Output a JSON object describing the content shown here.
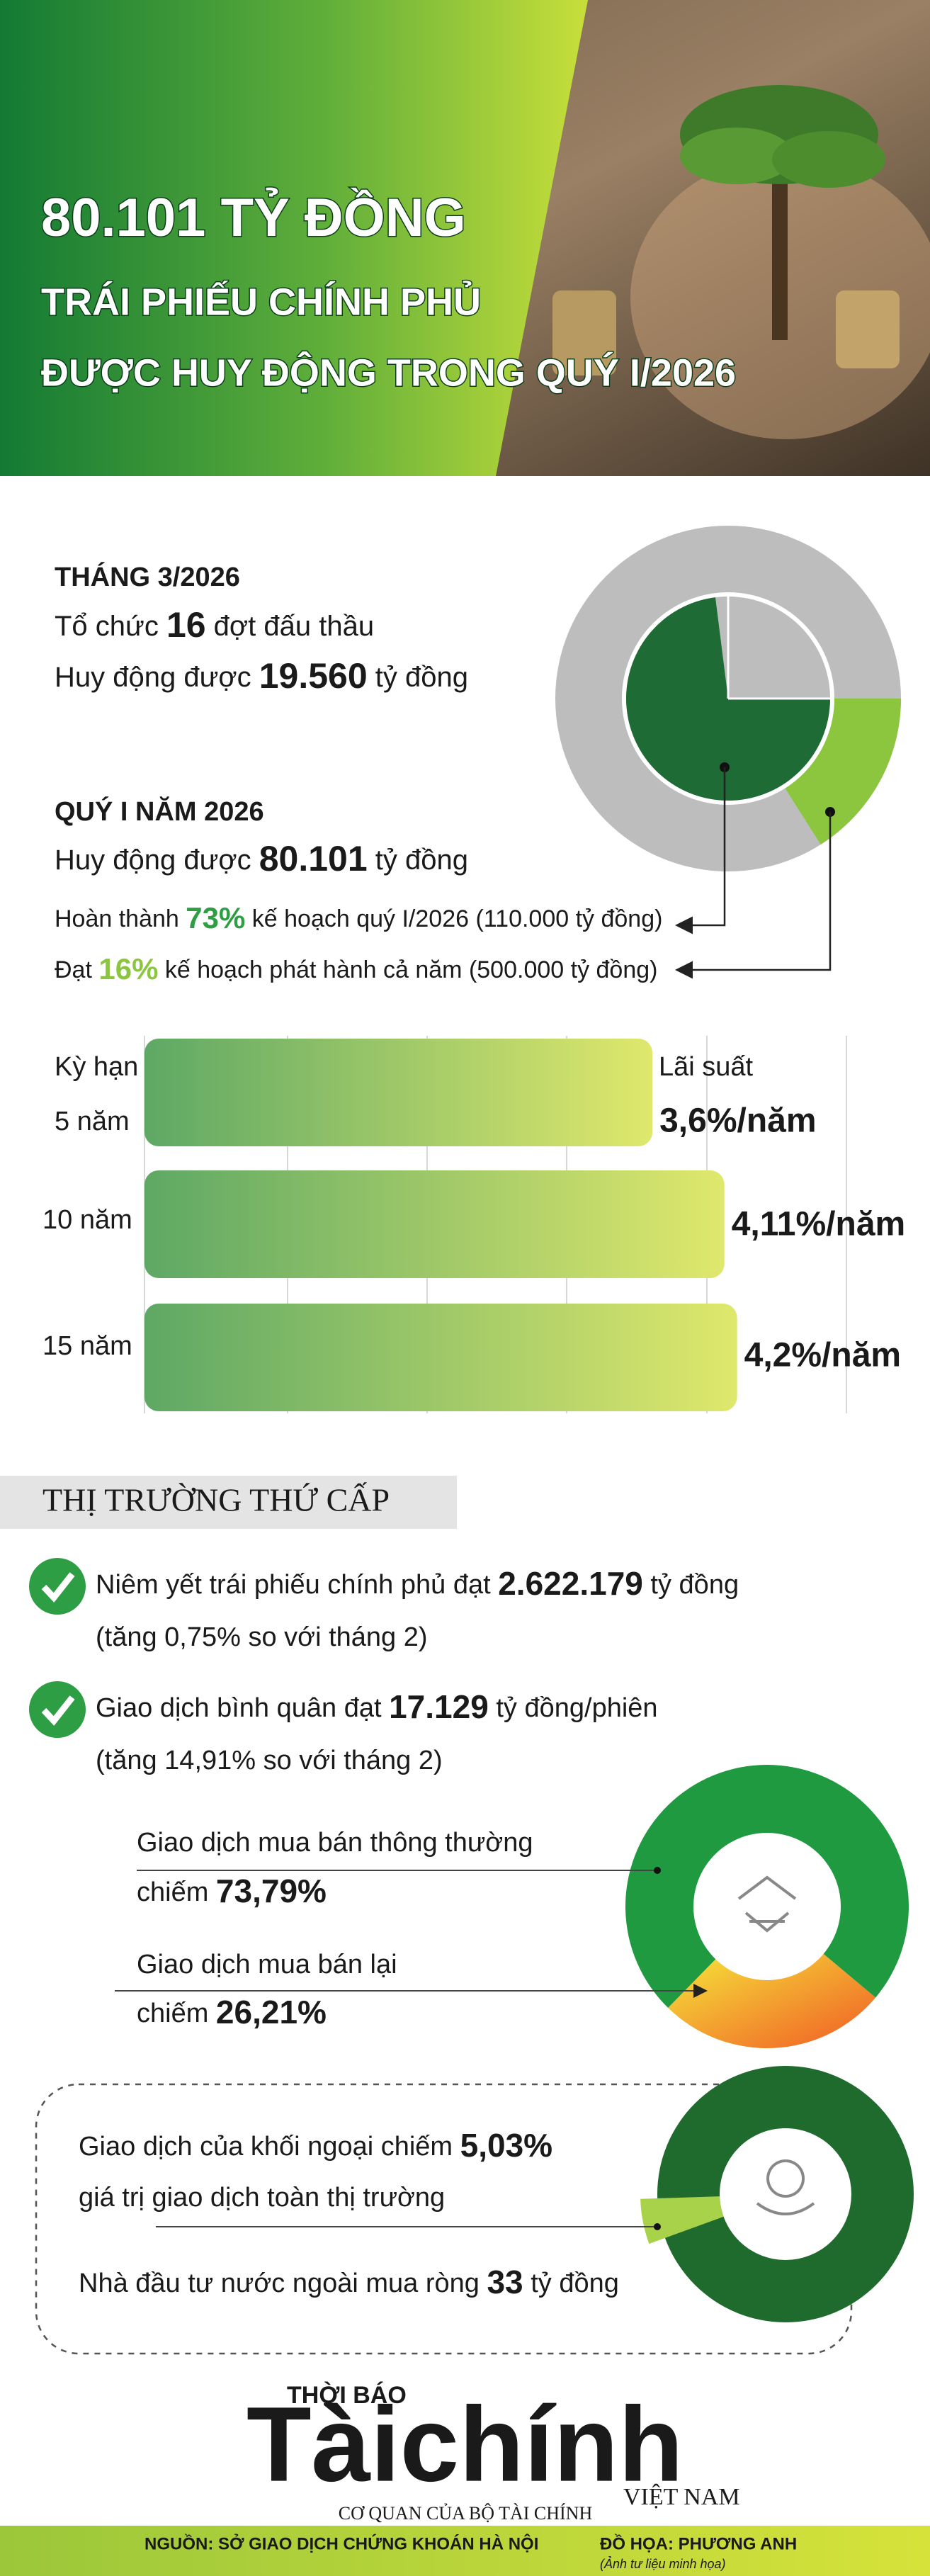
{
  "header": {
    "title_lines": [
      "80.101 TỶ ĐỒNG",
      "TRÁI PHIẾU CHÍNH PHỦ",
      "ĐƯỢC HUY ĐỘNG TRONG QUÝ I/2026"
    ]
  },
  "march": {
    "heading": "THÁNG 3/2026",
    "lines": [
      [
        "Tổ chức ",
        "16",
        " đợt đấu thầu"
      ],
      [
        "Huy động được ",
        "19.560",
        " tỷ đồng"
      ]
    ]
  },
  "quarter": {
    "heading": "QUÝ I NĂM 2026",
    "lines": [
      [
        "Huy động được ",
        "80.101",
        " tỷ đồng"
      ]
    ],
    "plan_lines": [
      [
        "Hoàn thành ",
        {
          "value": 73,
          "label": "73%"
        },
        " kế hoạch quý I/2026 (110.000 tỷ đồng)"
      ],
      [
        "Đạt ",
        {
          "value": 16,
          "label": "16%"
        },
        " kế hoạch phát hành cả năm (500.000 tỷ đồng)"
      ]
    ]
  },
  "terms": {
    "term_header": "Kỳ hạn",
    "rate_header": "Lãi suất",
    "rows": [
      {
        "term": "5 năm",
        "rate": {
          "value": 3.6,
          "label": "3,6%/năm"
        }
      },
      {
        "term": "10 năm",
        "rate": {
          "value": 4.11,
          "label": "4,11%/năm"
        }
      },
      {
        "term": "15 năm",
        "rate": {
          "value": 4.2,
          "label": "4,2%/năm"
        }
      }
    ]
  },
  "secondary": {
    "heading": "THỊ TRƯỜNG THỨ CẤP",
    "items": [
      {
        "line": [
          "Niêm yết trái phiếu chính phủ đạt ",
          "2.622.179",
          " tỷ đồng"
        ],
        "note": "(tăng 0,75% so với tháng 2)"
      },
      {
        "line": [
          "Giao dịch bình quân đạt ",
          "17.129",
          " tỷ đồng/phiên"
        ],
        "note": "(tăng 14,91% so với tháng 2)"
      }
    ]
  },
  "trading": {
    "types": [
      {
        "name": "Giao dịch mua bán thông thường",
        "share": [
          "chiếm ",
          {
            "value": 73.79,
            "label": "73,79%"
          }
        ]
      },
      {
        "name": "Giao dịch mua bán lại",
        "share": [
          "chiếm ",
          {
            "value": 26.21,
            "label": "26,21%"
          }
        ]
      }
    ]
  },
  "foreign": {
    "lines": [
      [
        "Giao dịch của khối ngoại chiếm ",
        {
          "value": 5.03,
          "label": "5,03%"
        }
      ],
      [
        "giá trị giao dịch toàn thị trường"
      ],
      [
        "Nhà đầu tư nước ngoài mua ròng ",
        "33",
        " tỷ đồng"
      ]
    ]
  },
  "footer": {
    "logo_top": "THỜI BÁO",
    "logo_main": "Tàichính",
    "logo_sub": "VIỆT NAM",
    "tagline": "CƠ QUAN CỦA BỘ TÀI CHÍNH",
    "source": "NGUỒN: SỞ GIAO DỊCH CHỨNG KHOÁN HÀ NỘI",
    "design": "ĐỒ HỌA: PHƯƠNG ANH",
    "photo_note": "(Ảnh tư liệu minh họa)"
  }
}
